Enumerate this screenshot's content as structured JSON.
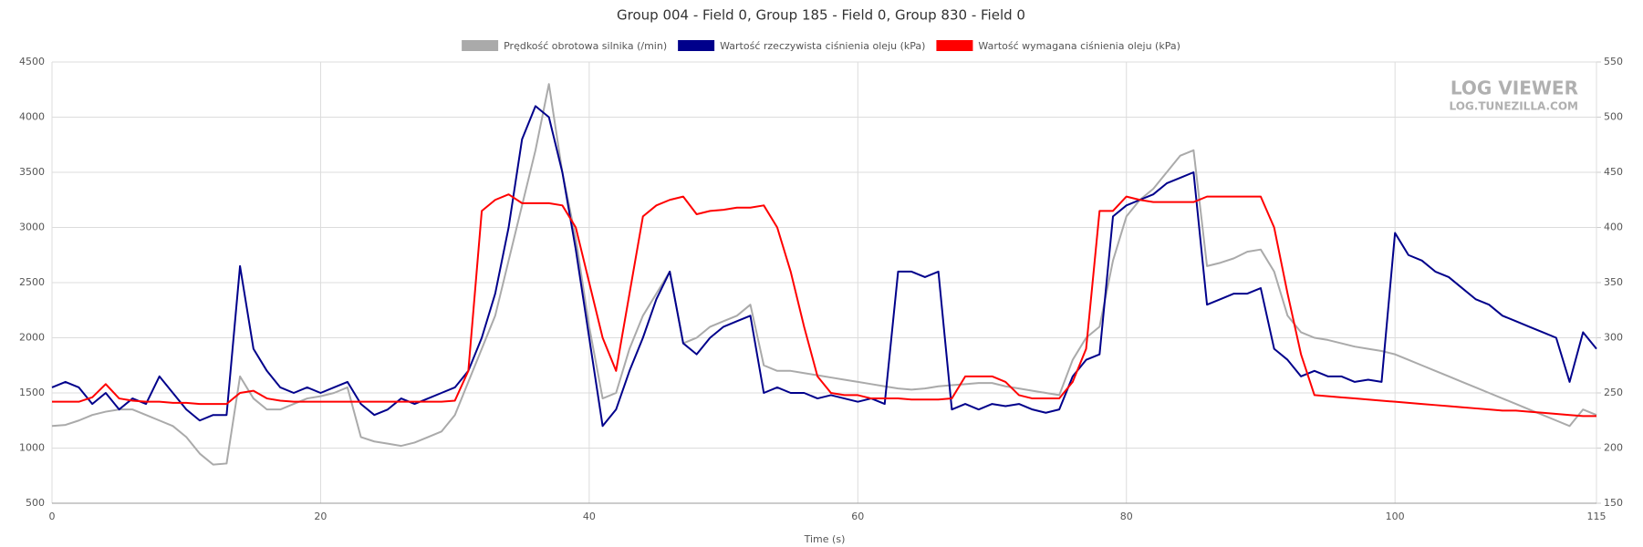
{
  "chart_data": {
    "type": "line",
    "title": "Group 004 - Field 0, Group 185 - Field 0, Group 830 - Field 0",
    "x_label": "Time (s)",
    "watermark": [
      "LOG VIEWER",
      "LOG.TUNEZILLA.COM"
    ],
    "grid": true,
    "xlim": [
      0,
      115
    ],
    "xticks": [
      0,
      20,
      40,
      60,
      80,
      100,
      115
    ],
    "ylim": [
      500,
      4500
    ],
    "yticks": [
      500,
      1000,
      1500,
      2000,
      2500,
      3000,
      3500,
      4000,
      4500
    ],
    "y2lim": [
      150,
      550
    ],
    "y2ticks": [
      150,
      200,
      250,
      300,
      350,
      400,
      450,
      500,
      550
    ],
    "x": [
      0,
      1,
      2,
      3,
      4,
      5,
      6,
      7,
      8,
      9,
      10,
      11,
      12,
      13,
      14,
      15,
      16,
      17,
      18,
      19,
      20,
      21,
      22,
      23,
      24,
      25,
      26,
      27,
      28,
      29,
      30,
      31,
      32,
      33,
      34,
      35,
      36,
      37,
      38,
      39,
      40,
      41,
      42,
      43,
      44,
      45,
      46,
      47,
      48,
      49,
      50,
      51,
      52,
      53,
      54,
      55,
      56,
      57,
      58,
      59,
      60,
      61,
      62,
      63,
      64,
      65,
      66,
      67,
      68,
      69,
      70,
      71,
      72,
      73,
      74,
      75,
      76,
      77,
      78,
      79,
      80,
      81,
      82,
      83,
      84,
      85,
      86,
      87,
      88,
      89,
      90,
      91,
      92,
      93,
      94,
      95,
      96,
      97,
      98,
      99,
      100,
      101,
      102,
      103,
      104,
      105,
      106,
      107,
      108,
      109,
      110,
      111,
      112,
      113,
      114,
      115
    ],
    "series": [
      {
        "name": "Prędkość obrotowa silnika (/min)",
        "color": "#aaaaaa",
        "values": [
          1200,
          1210,
          1250,
          1300,
          1330,
          1350,
          1350,
          1300,
          1250,
          1200,
          1100,
          950,
          850,
          860,
          1650,
          1450,
          1350,
          1350,
          1400,
          1450,
          1470,
          1500,
          1550,
          1100,
          1060,
          1040,
          1020,
          1050,
          1100,
          1150,
          1300,
          1600,
          1900,
          2200,
          2700,
          3200,
          3700,
          4300,
          3500,
          2900,
          2100,
          1450,
          1500,
          1900,
          2200,
          2400,
          2600,
          1950,
          2000,
          2100,
          2150,
          2200,
          2300,
          1750,
          1700,
          1700,
          1680,
          1660,
          1640,
          1620,
          1600,
          1580,
          1560,
          1540,
          1530,
          1540,
          1560,
          1570,
          1580,
          1590,
          1590,
          1560,
          1540,
          1520,
          1500,
          1480,
          1800,
          2000,
          2100,
          2700,
          3100,
          3250,
          3350,
          3500,
          3650,
          3700,
          2650,
          2680,
          2720,
          2780,
          2800,
          2600,
          2200,
          2050,
          2000,
          1980,
          1950,
          1920,
          1900,
          1880,
          1850,
          1800,
          1750,
          1700,
          1650,
          1600,
          1550,
          1500,
          1450,
          1400,
          1350,
          1300,
          1250,
          1200,
          1350,
          1300
        ]
      },
      {
        "name": "Wartość rzeczywista ciśnienia oleju (kPa)",
        "color": "#00008b",
        "axis": "y2",
        "values": [
          255,
          260,
          255,
          240,
          250,
          235,
          245,
          240,
          265,
          250,
          235,
          225,
          230,
          230,
          365,
          290,
          270,
          255,
          250,
          255,
          250,
          255,
          260,
          240,
          230,
          235,
          245,
          240,
          245,
          250,
          255,
          270,
          300,
          340,
          400,
          480,
          510,
          500,
          450,
          380,
          300,
          220,
          235,
          270,
          300,
          335,
          360,
          295,
          285,
          300,
          310,
          315,
          320,
          250,
          255,
          250,
          250,
          245,
          248,
          245,
          242,
          245,
          240,
          360,
          360,
          355,
          360,
          235,
          240,
          235,
          240,
          238,
          240,
          235,
          232,
          235,
          265,
          280,
          285,
          410,
          420,
          425,
          430,
          440,
          445,
          450,
          330,
          335,
          340,
          340,
          345,
          290,
          280,
          265,
          270,
          265,
          265,
          260,
          262,
          260,
          395,
          375,
          370,
          360,
          355,
          345,
          335,
          330,
          320,
          315,
          310,
          305,
          300,
          260,
          305,
          290
        ]
      },
      {
        "name": "Wartość wymagana ciśnienia oleju (kPa)",
        "color": "#ff0000",
        "axis": "y2",
        "values": [
          242,
          242,
          242,
          246,
          258,
          245,
          243,
          242,
          242,
          241,
          241,
          240,
          240,
          240,
          250,
          252,
          245,
          243,
          242,
          242,
          242,
          242,
          242,
          242,
          242,
          242,
          242,
          242,
          242,
          242,
          243,
          270,
          415,
          425,
          430,
          422,
          422,
          422,
          420,
          400,
          350,
          300,
          270,
          340,
          410,
          420,
          425,
          428,
          412,
          415,
          416,
          418,
          418,
          420,
          400,
          360,
          310,
          265,
          250,
          248,
          248,
          245,
          245,
          245,
          244,
          244,
          244,
          245,
          265,
          265,
          265,
          260,
          248,
          245,
          245,
          245,
          260,
          290,
          415,
          415,
          428,
          425,
          423,
          423,
          423,
          423,
          428,
          428,
          428,
          428,
          428,
          400,
          340,
          285,
          248,
          247,
          246,
          245,
          244,
          243,
          242,
          241,
          240,
          239,
          238,
          237,
          236,
          235,
          234,
          234,
          233,
          232,
          231,
          230,
          229,
          229
        ]
      }
    ]
  }
}
